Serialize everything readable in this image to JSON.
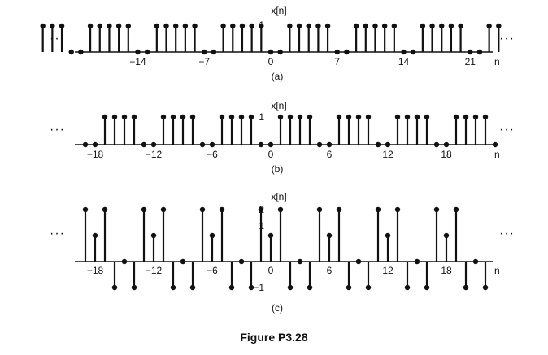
{
  "figure": {
    "caption": "Figure P3.28"
  },
  "chart_data": [
    {
      "type": "stem",
      "panel_label": "(a)",
      "ylabel": "x[n]",
      "xlabel": "n",
      "ytick_labels": [
        "1"
      ],
      "xtick_values": [
        -14,
        -7,
        0,
        7,
        14,
        21
      ],
      "xtick_labels": [
        "−14",
        "−7",
        "0",
        "7",
        "14",
        "21"
      ],
      "ellipsis": "···",
      "xlim": [
        -24,
        24
      ],
      "ylim": [
        0,
        1
      ],
      "points": [
        {
          "n": -24,
          "v": 1
        },
        {
          "n": -23,
          "v": 1
        },
        {
          "n": -22,
          "v": 1
        },
        {
          "n": -21,
          "v": 0
        },
        {
          "n": -20,
          "v": 0
        },
        {
          "n": -19,
          "v": 1
        },
        {
          "n": -18,
          "v": 1
        },
        {
          "n": -17,
          "v": 1
        },
        {
          "n": -16,
          "v": 1
        },
        {
          "n": -15,
          "v": 1
        },
        {
          "n": -14,
          "v": 0
        },
        {
          "n": -13,
          "v": 0
        },
        {
          "n": -12,
          "v": 1
        },
        {
          "n": -11,
          "v": 1
        },
        {
          "n": -10,
          "v": 1
        },
        {
          "n": -9,
          "v": 1
        },
        {
          "n": -8,
          "v": 1
        },
        {
          "n": -7,
          "v": 0
        },
        {
          "n": -6,
          "v": 0
        },
        {
          "n": -5,
          "v": 1
        },
        {
          "n": -4,
          "v": 1
        },
        {
          "n": -3,
          "v": 1
        },
        {
          "n": -2,
          "v": 1
        },
        {
          "n": -1,
          "v": 1
        },
        {
          "n": 0,
          "v": 0
        },
        {
          "n": 1,
          "v": 0
        },
        {
          "n": 2,
          "v": 1
        },
        {
          "n": 3,
          "v": 1
        },
        {
          "n": 4,
          "v": 1
        },
        {
          "n": 5,
          "v": 1
        },
        {
          "n": 6,
          "v": 1
        },
        {
          "n": 7,
          "v": 0
        },
        {
          "n": 8,
          "v": 0
        },
        {
          "n": 9,
          "v": 1
        },
        {
          "n": 10,
          "v": 1
        },
        {
          "n": 11,
          "v": 1
        },
        {
          "n": 12,
          "v": 1
        },
        {
          "n": 13,
          "v": 1
        },
        {
          "n": 14,
          "v": 0
        },
        {
          "n": 15,
          "v": 0
        },
        {
          "n": 16,
          "v": 1
        },
        {
          "n": 17,
          "v": 1
        },
        {
          "n": 18,
          "v": 1
        },
        {
          "n": 19,
          "v": 1
        },
        {
          "n": 20,
          "v": 1
        },
        {
          "n": 21,
          "v": 0
        },
        {
          "n": 22,
          "v": 0
        },
        {
          "n": 23,
          "v": 1
        },
        {
          "n": 24,
          "v": 1
        }
      ]
    },
    {
      "type": "stem",
      "panel_label": "(b)",
      "ylabel": "x[n]",
      "xlabel": "n",
      "ytick_labels": [
        "1"
      ],
      "xtick_values": [
        -18,
        -12,
        -6,
        0,
        6,
        12,
        18
      ],
      "xtick_labels": [
        "−18",
        "−12",
        "−6",
        "0",
        "6",
        "12",
        "18"
      ],
      "ellipsis": "···",
      "xlim": [
        -20,
        22
      ],
      "ylim": [
        0,
        1
      ],
      "points": [
        {
          "n": -19,
          "v": 0
        },
        {
          "n": -18,
          "v": 0
        },
        {
          "n": -17,
          "v": 1
        },
        {
          "n": -16,
          "v": 1
        },
        {
          "n": -15,
          "v": 1
        },
        {
          "n": -14,
          "v": 1
        },
        {
          "n": -13,
          "v": 0
        },
        {
          "n": -12,
          "v": 0
        },
        {
          "n": -11,
          "v": 1
        },
        {
          "n": -10,
          "v": 1
        },
        {
          "n": -9,
          "v": 1
        },
        {
          "n": -8,
          "v": 1
        },
        {
          "n": -7,
          "v": 0
        },
        {
          "n": -6,
          "v": 0
        },
        {
          "n": -5,
          "v": 1
        },
        {
          "n": -4,
          "v": 1
        },
        {
          "n": -3,
          "v": 1
        },
        {
          "n": -2,
          "v": 1
        },
        {
          "n": -1,
          "v": 0
        },
        {
          "n": 0,
          "v": 0
        },
        {
          "n": 1,
          "v": 1
        },
        {
          "n": 2,
          "v": 1
        },
        {
          "n": 3,
          "v": 1
        },
        {
          "n": 4,
          "v": 1
        },
        {
          "n": 5,
          "v": 0
        },
        {
          "n": 6,
          "v": 0
        },
        {
          "n": 7,
          "v": 1
        },
        {
          "n": 8,
          "v": 1
        },
        {
          "n": 9,
          "v": 1
        },
        {
          "n": 10,
          "v": 1
        },
        {
          "n": 11,
          "v": 0
        },
        {
          "n": 12,
          "v": 0
        },
        {
          "n": 13,
          "v": 1
        },
        {
          "n": 14,
          "v": 1
        },
        {
          "n": 15,
          "v": 1
        },
        {
          "n": 16,
          "v": 1
        },
        {
          "n": 17,
          "v": 0
        },
        {
          "n": 18,
          "v": 0
        },
        {
          "n": 19,
          "v": 1
        },
        {
          "n": 20,
          "v": 1
        },
        {
          "n": 21,
          "v": 1
        },
        {
          "n": 22,
          "v": 1
        },
        {
          "n": 23,
          "v": 0
        }
      ]
    },
    {
      "type": "stem",
      "panel_label": "(c)",
      "ylabel": "x[n]",
      "xlabel": "n",
      "ytick_labels": [
        "2",
        "1",
        "−1"
      ],
      "xtick_values": [
        -18,
        -12,
        -6,
        0,
        6,
        12,
        18
      ],
      "xtick_labels": [
        "−18",
        "−12",
        "−6",
        "0",
        "6",
        "12",
        "18"
      ],
      "ellipsis": "···",
      "xlim": [
        -20,
        22
      ],
      "ylim": [
        -1,
        2
      ],
      "points": [
        {
          "n": -19,
          "v": 2
        },
        {
          "n": -18,
          "v": 1
        },
        {
          "n": -17,
          "v": 2
        },
        {
          "n": -16,
          "v": -1
        },
        {
          "n": -15,
          "v": 0
        },
        {
          "n": -14,
          "v": -1
        },
        {
          "n": -13,
          "v": 2
        },
        {
          "n": -12,
          "v": 1
        },
        {
          "n": -11,
          "v": 2
        },
        {
          "n": -10,
          "v": -1
        },
        {
          "n": -9,
          "v": 0
        },
        {
          "n": -8,
          "v": -1
        },
        {
          "n": -7,
          "v": 2
        },
        {
          "n": -6,
          "v": 1
        },
        {
          "n": -5,
          "v": 2
        },
        {
          "n": -4,
          "v": -1
        },
        {
          "n": -3,
          "v": 0
        },
        {
          "n": -2,
          "v": -1
        },
        {
          "n": -1,
          "v": 2
        },
        {
          "n": 0,
          "v": 1
        },
        {
          "n": 1,
          "v": 2
        },
        {
          "n": 2,
          "v": -1
        },
        {
          "n": 3,
          "v": 0
        },
        {
          "n": 4,
          "v": -1
        },
        {
          "n": 5,
          "v": 2
        },
        {
          "n": 6,
          "v": 1
        },
        {
          "n": 7,
          "v": 2
        },
        {
          "n": 8,
          "v": -1
        },
        {
          "n": 9,
          "v": 0
        },
        {
          "n": 10,
          "v": -1
        },
        {
          "n": 11,
          "v": 2
        },
        {
          "n": 12,
          "v": 1
        },
        {
          "n": 13,
          "v": 2
        },
        {
          "n": 14,
          "v": -1
        },
        {
          "n": 15,
          "v": 0
        },
        {
          "n": 16,
          "v": -1
        },
        {
          "n": 17,
          "v": 2
        },
        {
          "n": 18,
          "v": 1
        },
        {
          "n": 19,
          "v": 2
        },
        {
          "n": 20,
          "v": -1
        },
        {
          "n": 21,
          "v": 0
        },
        {
          "n": 22,
          "v": -1
        }
      ]
    }
  ]
}
